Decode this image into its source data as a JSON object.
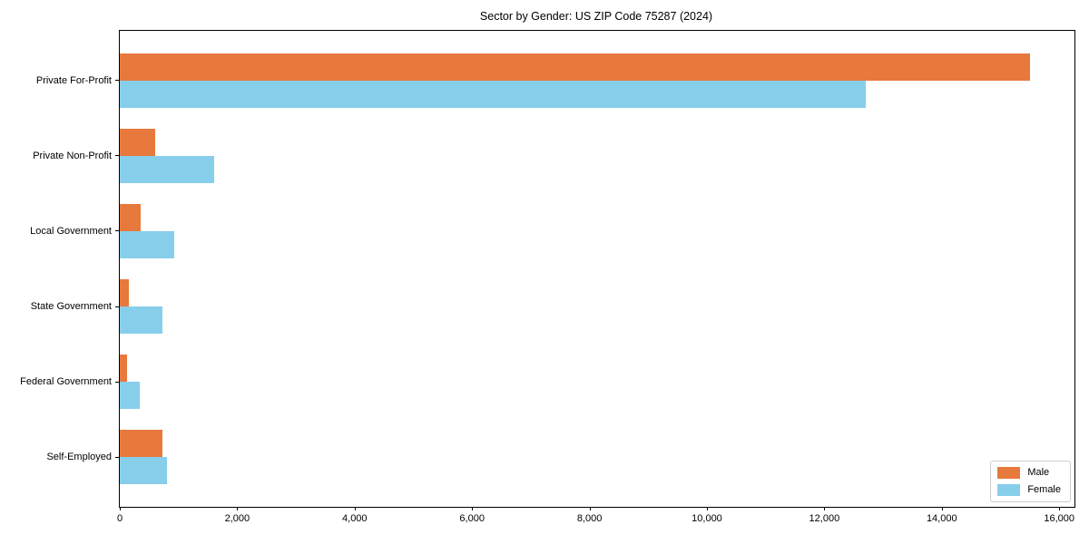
{
  "chart_data": {
    "type": "bar",
    "orientation": "horizontal",
    "title": "Sector by Gender: US ZIP Code 75287 (2024)",
    "categories": [
      "Private For-Profit",
      "Private Non-Profit",
      "Local Government",
      "State Government",
      "Federal Government",
      "Self-Employed"
    ],
    "series": [
      {
        "name": "Male",
        "color": "#e8793d",
        "values": [
          15500,
          600,
          360,
          150,
          120,
          730
        ]
      },
      {
        "name": "Female",
        "color": "#87ceeb",
        "values": [
          12700,
          1600,
          920,
          730,
          345,
          800
        ]
      }
    ],
    "xlim": [
      0,
      16260
    ],
    "xticks": [
      0,
      2000,
      4000,
      6000,
      8000,
      10000,
      12000,
      14000,
      16000
    ],
    "xtick_labels": [
      "0",
      "2,000",
      "4,000",
      "6,000",
      "8,000",
      "10,000",
      "12,000",
      "14,000",
      "16,000"
    ],
    "grid": false,
    "legend_position": "lower right",
    "colors": {
      "spine": "#000000",
      "background": "#ffffff",
      "legend_border": "#cccccc"
    }
  }
}
